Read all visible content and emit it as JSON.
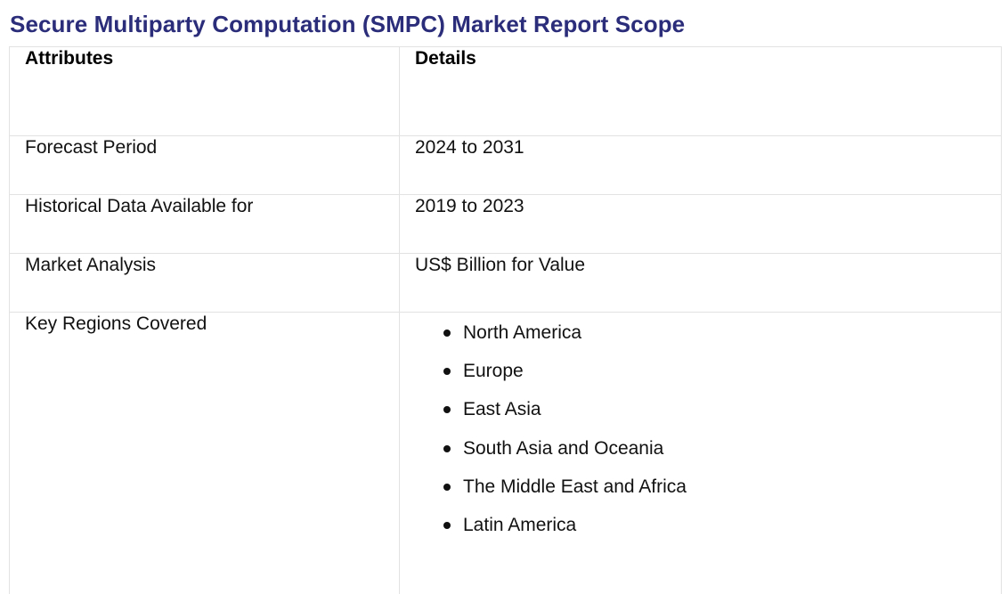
{
  "title": "Secure Multiparty Computation (SMPC) Market Report Scope",
  "table": {
    "headers": [
      "Attributes",
      "Details"
    ],
    "rows": [
      {
        "attribute": "Forecast Period",
        "detail": "2024 to 2031"
      },
      {
        "attribute": "Historical Data Available for",
        "detail": "2019 to 2023"
      },
      {
        "attribute": "Market Analysis",
        "detail": "US$ Billion for Value"
      }
    ],
    "regions": {
      "attribute": "Key Regions Covered",
      "items": [
        "North America",
        "Europe",
        "East Asia",
        "South Asia and Oceania",
        "The Middle East and Africa",
        "Latin America"
      ]
    }
  },
  "colors": {
    "title": "#2b2d7a",
    "border": "#e2e2e2",
    "text": "#111111"
  }
}
